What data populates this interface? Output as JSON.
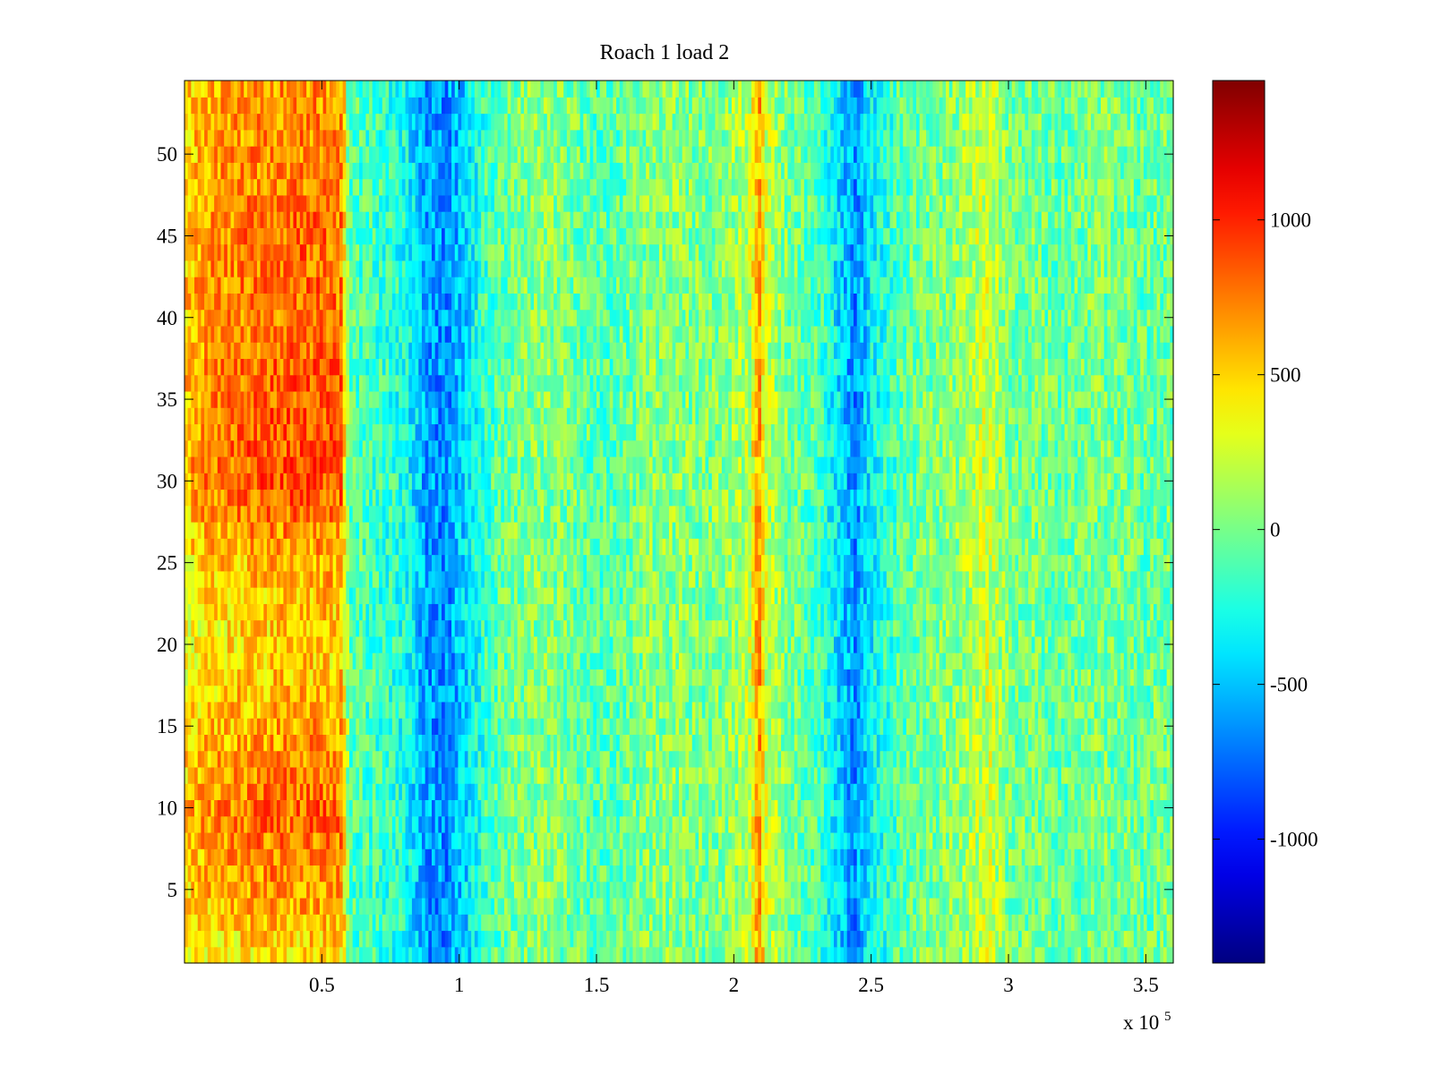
{
  "chart_data": {
    "type": "heatmap",
    "title": "Roach 1 load 2",
    "xlabel": "",
    "ylabel": "",
    "x_multiplier_label": {
      "base": "x 10",
      "exponent": "5"
    },
    "xlim": [
      0,
      3.6
    ],
    "ylim": [
      0.5,
      54.5
    ],
    "x_ticks": [
      0.5,
      1,
      1.5,
      2,
      2.5,
      3,
      3.5
    ],
    "x_tick_labels": [
      "0.5",
      "1",
      "1.5",
      "2",
      "2.5",
      "3",
      "3.5"
    ],
    "y_ticks": [
      5,
      10,
      15,
      20,
      25,
      30,
      35,
      40,
      45,
      50
    ],
    "y_tick_labels": [
      "5",
      "10",
      "15",
      "20",
      "25",
      "30",
      "35",
      "40",
      "45",
      "50"
    ],
    "rows": 54,
    "colormap": "jet",
    "clim": [
      -1400,
      1450
    ],
    "colorbar": {
      "ticks": [
        -1000,
        -500,
        0,
        500,
        1000
      ],
      "tick_labels": [
        "-1000",
        "-500",
        "0",
        "500",
        "1000"
      ]
    },
    "column_profile": {
      "description": "approximate mean value vs x (x in units of 1e5)",
      "x": [
        0,
        0.1,
        0.2,
        0.3,
        0.4,
        0.5,
        0.57,
        0.6,
        0.7,
        0.8,
        0.88,
        0.95,
        1.02,
        1.1,
        1.2,
        1.3,
        1.4,
        1.5,
        1.6,
        1.7,
        1.8,
        1.9,
        2.0,
        2.06,
        2.09,
        2.12,
        2.2,
        2.3,
        2.38,
        2.44,
        2.5,
        2.6,
        2.7,
        2.8,
        2.93,
        3.0,
        3.1,
        3.2,
        3.3,
        3.4,
        3.5,
        3.6
      ],
      "values": [
        550,
        700,
        750,
        800,
        800,
        820,
        780,
        -100,
        -150,
        -250,
        -600,
        -650,
        -450,
        -150,
        0,
        50,
        0,
        -100,
        -50,
        50,
        50,
        0,
        100,
        200,
        700,
        200,
        0,
        -100,
        -400,
        -650,
        -350,
        -100,
        0,
        50,
        250,
        0,
        0,
        -50,
        0,
        0,
        -50,
        0
      ]
    },
    "row_modulation": {
      "description": "extra intensity of the left hot band by row (y)",
      "y": [
        1,
        5,
        10,
        15,
        20,
        25,
        30,
        35,
        40,
        45,
        50,
        54
      ],
      "gain": [
        0.55,
        0.85,
        1.0,
        0.8,
        0.6,
        0.75,
        1.1,
        1.05,
        0.95,
        1.0,
        0.9,
        0.85
      ]
    },
    "grid": false,
    "legend": "colorbar-right"
  }
}
